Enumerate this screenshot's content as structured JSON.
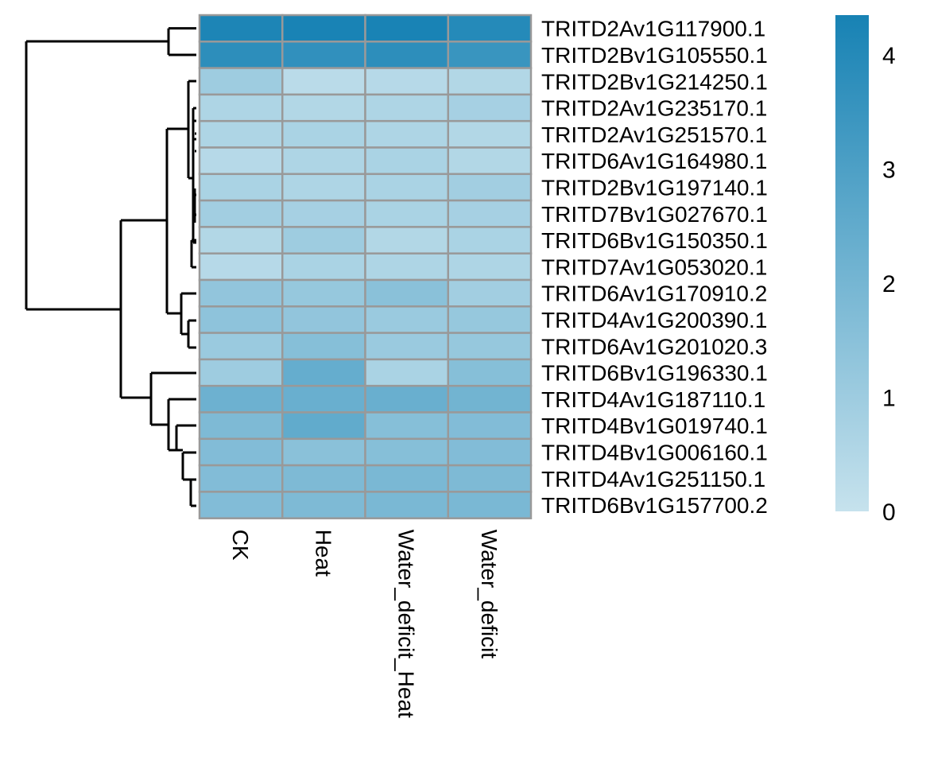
{
  "chart_data": {
    "type": "heatmap",
    "columns": [
      "CK",
      "Heat",
      "Water_deficit_Heat",
      "Water_deficit"
    ],
    "rows": [
      "TRITD2Av1G117900.1",
      "TRITD2Bv1G105550.1",
      "TRITD2Bv1G214250.1",
      "TRITD2Av1G235170.1",
      "TRITD2Av1G251570.1",
      "TRITD6Av1G164980.1",
      "TRITD2Bv1G197140.1",
      "TRITD7Bv1G027670.1",
      "TRITD6Bv1G150350.1",
      "TRITD7Av1G053020.1",
      "TRITD6Av1G170910.2",
      "TRITD4Av1G200390.1",
      "TRITD6Av1G201020.3",
      "TRITD6Bv1G196330.1",
      "TRITD4Av1G187110.1",
      "TRITD4Bv1G019740.1",
      "TRITD4Bv1G006160.1",
      "TRITD4Av1G251150.1",
      "TRITD6Bv1G157700.2"
    ],
    "values": [
      [
        4.2,
        4.3,
        4.3,
        4.0
      ],
      [
        3.8,
        3.7,
        3.8,
        3.5
      ],
      [
        1.0,
        0.3,
        0.4,
        0.5
      ],
      [
        0.6,
        0.5,
        0.6,
        0.8
      ],
      [
        0.6,
        0.7,
        0.6,
        0.5
      ],
      [
        0.4,
        0.6,
        0.7,
        0.5
      ],
      [
        0.7,
        0.6,
        0.7,
        0.9
      ],
      [
        0.9,
        0.8,
        0.7,
        0.8
      ],
      [
        0.5,
        1.0,
        0.5,
        0.7
      ],
      [
        0.4,
        0.7,
        0.6,
        0.6
      ],
      [
        1.3,
        1.2,
        1.5,
        0.9
      ],
      [
        1.4,
        1.3,
        1.1,
        1.2
      ],
      [
        1.1,
        1.6,
        1.1,
        1.2
      ],
      [
        1.0,
        2.4,
        0.7,
        1.6
      ],
      [
        2.2,
        2.3,
        2.3,
        2.1
      ],
      [
        1.8,
        2.5,
        1.6,
        1.7
      ],
      [
        1.7,
        1.5,
        1.6,
        1.7
      ],
      [
        1.7,
        1.8,
        1.9,
        1.8
      ],
      [
        1.7,
        1.8,
        1.9,
        1.9
      ]
    ],
    "color_scale": {
      "min": 0,
      "max": 4.35,
      "low_color": "#c6e2ed",
      "high_color": "#1782b4",
      "ticks": [
        0,
        1,
        2,
        3,
        4
      ]
    },
    "cell_border_color": "#999999",
    "row_dendrogram": true,
    "legend_position": "right"
  }
}
